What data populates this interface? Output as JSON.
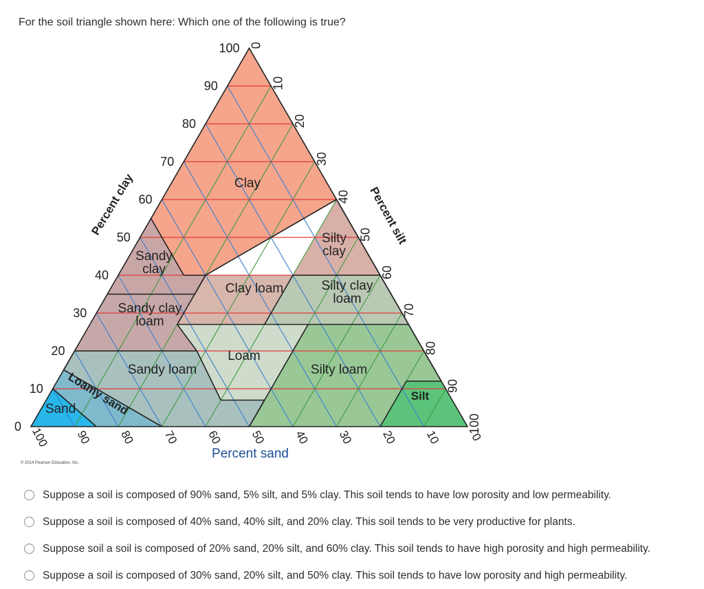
{
  "question": "For the soil triangle shown here: Which one of the following is true?",
  "diagram": {
    "axis_clay_title": "Percent clay",
    "axis_silt_title": "Percent silt",
    "axis_sand_title": "Percent sand",
    "clay_ticks": [
      "0",
      "10",
      "20",
      "30",
      "40",
      "50",
      "60",
      "70",
      "80",
      "90",
      "100"
    ],
    "silt_ticks": [
      "0",
      "10",
      "20",
      "30",
      "40",
      "50",
      "60",
      "70",
      "80",
      "90",
      "100"
    ],
    "sand_ticks": [
      "100",
      "90",
      "80",
      "70",
      "60",
      "50",
      "40",
      "30",
      "20",
      "10",
      "0"
    ],
    "regions": {
      "clay": "Clay",
      "sandy_clay_1": "Sandy",
      "sandy_clay_2": "clay",
      "silty_clay_1": "Silty",
      "silty_clay_2": "clay",
      "clay_loam": "Clay loam",
      "silty_clay_loam_1": "Silty clay",
      "silty_clay_loam_2": "loam",
      "sandy_clay_loam_1": "Sandy clay",
      "sandy_clay_loam_2": "loam",
      "loam": "Loam",
      "sandy_loam": "Sandy loam",
      "silty_loam": "Silty loam",
      "loamy_sand": "Loamy sand",
      "sand": "Sand",
      "silt": "Silt"
    },
    "colors": {
      "clay": "#f4a58c",
      "sandy_clay": "#c9a6a6",
      "silty_clay": "#d8b0a8",
      "clay_loam": "#d7b6ab",
      "silty_clay_loam": "#b9c9b4",
      "sandy_clay_loam": "#c7a8a8",
      "loam": "#cfdccc",
      "sandy_loam": "#a9c1be",
      "silty_loam": "#99c896",
      "loamy_sand": "#7fb9cc",
      "sand": "#29b6e8",
      "silt": "#5cc47a"
    },
    "credit": "© 2014 Pearson Education, Inc."
  },
  "options": [
    "Suppose a soil is composed of 90% sand, 5% silt, and 5% clay. This soil tends to have low porosity and low permeability.",
    "Suppose a soil is composed of 40% sand, 40% silt, and 20% clay. This soil tends to be very productive for plants.",
    "Suppose soil a soil is composed of 20% sand, 20% silt, and 60% clay. This soil tends to have high porosity and high permeability.",
    "Suppose a soil is composed of 30% sand, 20% silt, and 50% clay. This soil tends to have low porosity and high permeability."
  ]
}
